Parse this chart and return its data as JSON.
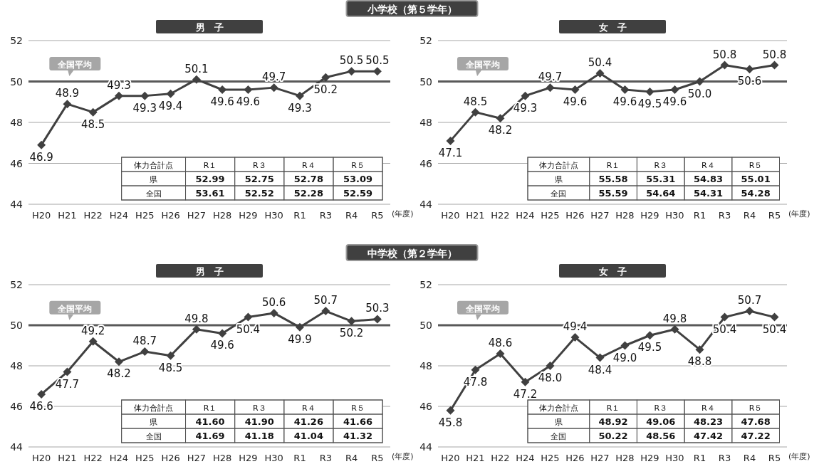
{
  "chart_data": [
    {
      "type": "line",
      "subtitle": "小学校（第５学年）",
      "title": "男　子",
      "xlabel": "(年度)",
      "categories": [
        "H20",
        "H21",
        "H22",
        "H24",
        "H25",
        "H26",
        "H27",
        "H28",
        "H29",
        "H30",
        "R1",
        "R3",
        "R4",
        "R5"
      ],
      "series": [
        {
          "color": "#404040",
          "values": [
            46.9,
            48.9,
            48.5,
            49.3,
            49.3,
            49.4,
            50.1,
            49.6,
            49.6,
            49.7,
            49.3,
            50.2,
            50.5,
            50.5
          ],
          "value_labels": [
            "46.9",
            "48.9",
            "48.5",
            "49.3",
            "49.3",
            "49.4",
            "50.1",
            "49.6",
            "49.6",
            "49.7",
            "49.3",
            "50.2",
            "50.5",
            "50.5"
          ]
        }
      ],
      "ylim": [
        44,
        52
      ],
      "yticks": [
        44,
        46,
        48,
        50,
        52
      ],
      "grid": "y",
      "marker": "diamond",
      "line_style": "solid",
      "ref_lines": [
        {
          "axis": "y",
          "value": 50,
          "label": "全国平均",
          "color": "#595959"
        }
      ],
      "annotations": [
        "体力合計点",
        "R１",
        "R３",
        "R４",
        "R５",
        "県",
        "52.99",
        "52.75",
        "52.78",
        "53.09",
        "全国",
        "53.61",
        "52.52",
        "52.28",
        "52.59"
      ]
    },
    {
      "type": "line",
      "title": "女　子",
      "xlabel": "(年度)",
      "categories": [
        "H20",
        "H21",
        "H22",
        "H24",
        "H25",
        "H26",
        "H27",
        "H28",
        "H29",
        "H30",
        "R1",
        "R3",
        "R4",
        "R5"
      ],
      "series": [
        {
          "color": "#404040",
          "values": [
            47.1,
            48.5,
            48.2,
            49.3,
            49.7,
            49.6,
            50.4,
            49.6,
            49.5,
            49.6,
            50.0,
            50.8,
            50.6,
            50.8
          ],
          "value_labels": [
            "47.1",
            "48.5",
            "48.2",
            "49.3",
            "49.7",
            "49.6",
            "50.4",
            "49.6",
            "49.5",
            "49.6",
            "50.0",
            "50.8",
            "50.6",
            "50.8"
          ]
        }
      ],
      "ylim": [
        44,
        52
      ],
      "yticks": [
        44,
        46,
        48,
        50,
        52
      ],
      "grid": "y",
      "marker": "diamond",
      "line_style": "solid",
      "ref_lines": [
        {
          "axis": "y",
          "value": 50,
          "label": "全国平均",
          "color": "#595959"
        }
      ],
      "annotations": [
        "体力合計点",
        "R１",
        "R３",
        "R４",
        "R５",
        "県",
        "55.58",
        "55.31",
        "54.83",
        "55.01",
        "全国",
        "55.59",
        "54.64",
        "54.31",
        "54.28"
      ]
    },
    {
      "type": "line",
      "subtitle": "中学校（第２学年）",
      "title": "男　子",
      "xlabel": "(年度)",
      "categories": [
        "H20",
        "H21",
        "H22",
        "H24",
        "H25",
        "H26",
        "H27",
        "H28",
        "H29",
        "H30",
        "R1",
        "R3",
        "R4",
        "R5"
      ],
      "series": [
        {
          "color": "#404040",
          "values": [
            46.6,
            47.7,
            49.2,
            48.2,
            48.7,
            48.5,
            49.8,
            49.6,
            50.4,
            50.6,
            49.9,
            50.7,
            50.2,
            50.3
          ],
          "value_labels": [
            "46.6",
            "47.7",
            "49.2",
            "48.2",
            "48.7",
            "48.5",
            "49.8",
            "49.6",
            "50.4",
            "50.6",
            "49.9",
            "50.7",
            "50.2",
            "50.3"
          ]
        }
      ],
      "ylim": [
        44,
        52
      ],
      "yticks": [
        44,
        46,
        48,
        50,
        52
      ],
      "grid": "y",
      "marker": "diamond",
      "line_style": "solid",
      "ref_lines": [
        {
          "axis": "y",
          "value": 50,
          "label": "全国平均",
          "color": "#595959"
        }
      ],
      "annotations": [
        "体力合計点",
        "R１",
        "R３",
        "R４",
        "R５",
        "県",
        "41.60",
        "41.90",
        "41.26",
        "41.66",
        "全国",
        "41.69",
        "41.18",
        "41.04",
        "41.32"
      ]
    },
    {
      "type": "line",
      "title": "女　子",
      "xlabel": "(年度)",
      "categories": [
        "H20",
        "H21",
        "H22",
        "H24",
        "H25",
        "H26",
        "H27",
        "H28",
        "H29",
        "H30",
        "R1",
        "R3",
        "R4",
        "R5"
      ],
      "series": [
        {
          "color": "#404040",
          "values": [
            45.8,
            47.8,
            48.6,
            47.2,
            48.0,
            49.4,
            48.4,
            49.0,
            49.5,
            49.8,
            48.8,
            50.4,
            50.7,
            50.4
          ],
          "value_labels": [
            "45.8",
            "47.8",
            "48.6",
            "47.2",
            "48.0",
            "49.4",
            "48.4",
            "49.0",
            "49.5",
            "49.8",
            "48.8",
            "50.4",
            "50.7",
            "50.4"
          ]
        }
      ],
      "ylim": [
        44,
        52
      ],
      "yticks": [
        44,
        46,
        48,
        50,
        52
      ],
      "grid": "y",
      "marker": "diamond",
      "line_style": "solid",
      "ref_lines": [
        {
          "axis": "y",
          "value": 50,
          "label": "全国平均",
          "color": "#595959"
        }
      ],
      "annotations": [
        "体力合計点",
        "R１",
        "R３",
        "R４",
        "R５",
        "県",
        "48.92",
        "49.06",
        "48.23",
        "47.68",
        "全国",
        "50.22",
        "48.56",
        "47.42",
        "47.22"
      ]
    }
  ]
}
